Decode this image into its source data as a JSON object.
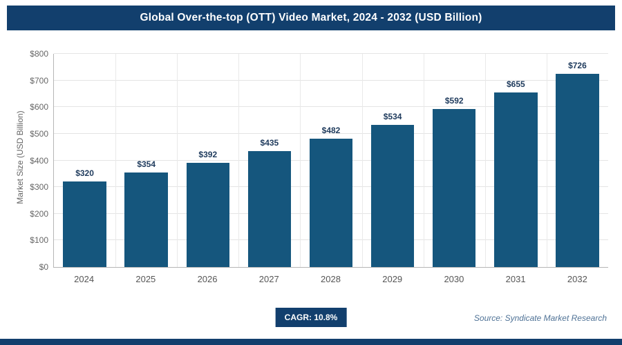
{
  "header": {
    "title": "Global Over-the-top (OTT) Video Market, 2024 - 2032 (USD Billion)"
  },
  "footer": {
    "cagr_label": "CAGR: 10.8%",
    "source": "Source: Syndicate Market Research"
  },
  "colors": {
    "header_bg": "#123f6d",
    "bar": "#15567d",
    "value_label": "#1e3a5c",
    "badge_bg": "#123f6d",
    "bottom_bar_bg": "#123f6d",
    "axis_text": "#666666",
    "grid": "#e4e4e4",
    "source_text": "#4f7296"
  },
  "chart_data": {
    "type": "bar",
    "title": "Global Over-the-top (OTT) Video Market, 2024 - 2032 (USD Billion)",
    "categories": [
      "2024",
      "2025",
      "2026",
      "2027",
      "2028",
      "2029",
      "2030",
      "2031",
      "2032"
    ],
    "values": [
      320,
      354,
      392,
      435,
      482,
      534,
      592,
      655,
      726
    ],
    "value_labels": [
      "$320",
      "$354",
      "$392",
      "$435",
      "$482",
      "$534",
      "$592",
      "$655",
      "$726"
    ],
    "xlabel": "",
    "ylabel": "Market Size (USD Billion)",
    "ylim": [
      0,
      800
    ],
    "ytick_step": 100,
    "ytick_labels": [
      "$0",
      "$100",
      "$200",
      "$300",
      "$400",
      "$500",
      "$600",
      "$700",
      "$800"
    ],
    "grid": true,
    "legend": false,
    "annotations": [
      "CAGR: 10.8%"
    ]
  }
}
